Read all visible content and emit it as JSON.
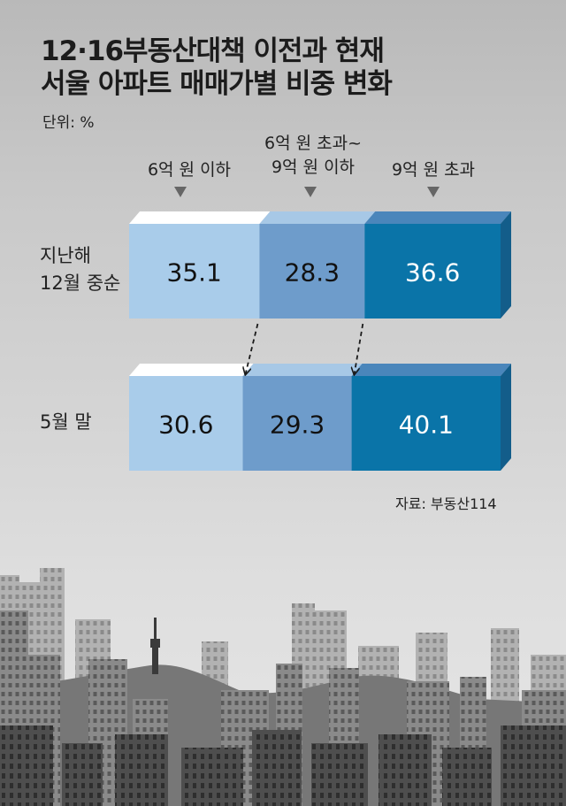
{
  "title_line1": "12·16부동산대책 이전과 현재",
  "title_line2": "서울 아파트 매매가별 비중 변화",
  "unit": "단위: %",
  "source": "자료: 부동산114",
  "headers": [
    {
      "line1": "6억 원 이하",
      "line2": ""
    },
    {
      "line1": "6억 원 초과~",
      "line2": "9억 원 이하"
    },
    {
      "line1": "9억 원 초과",
      "line2": ""
    }
  ],
  "rows": [
    {
      "label_line1": "지난해",
      "label_line2": "12월 중순"
    },
    {
      "label_line1": "5월 말",
      "label_line2": ""
    }
  ],
  "colors": {
    "light": "#a9ccea",
    "mid": "#6e9ccb",
    "dark": "#0a74a8",
    "top_light": "#ffffff",
    "top_mid": "#a7c8e6",
    "top_dark": "#4a86bb",
    "side": "#135d8a"
  },
  "chart_data": {
    "type": "bar",
    "stacked": true,
    "orientation": "horizontal",
    "title": "12·16부동산대책 이전과 현재 서울 아파트 매매가별 비중 변화",
    "unit": "%",
    "categories": [
      "지난해 12월 중순",
      "5월 말"
    ],
    "series": [
      {
        "name": "6억 원 이하",
        "values": [
          35.1,
          30.6
        ]
      },
      {
        "name": "6억 원 초과~9억 원 이하",
        "values": [
          28.3,
          29.3
        ]
      },
      {
        "name": "9억 원 초과",
        "values": [
          36.6,
          40.1
        ]
      }
    ],
    "value_labels": [
      [
        "35.1",
        "28.3",
        "36.6"
      ],
      [
        "30.6",
        "29.3",
        "40.1"
      ]
    ],
    "xlim": [
      0,
      100
    ]
  }
}
